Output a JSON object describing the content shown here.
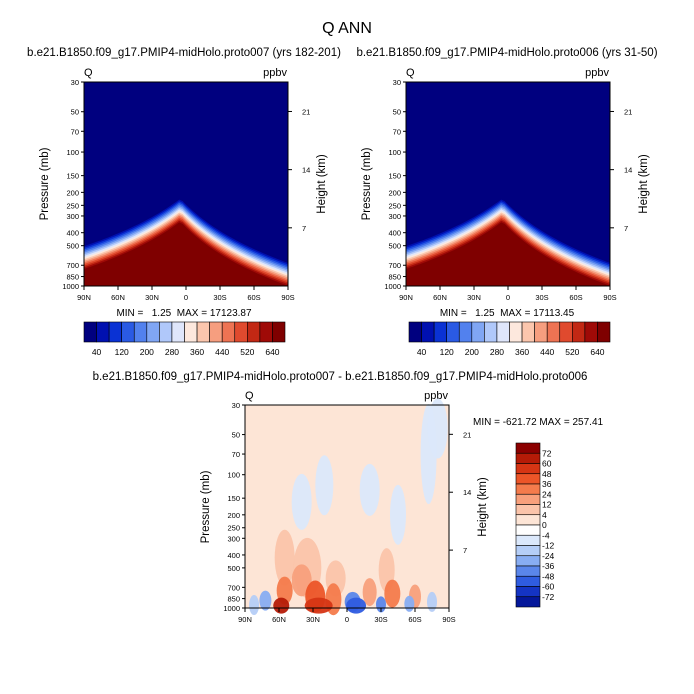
{
  "page": {
    "title": "Q ANN"
  },
  "chart_data": [
    {
      "type": "heatmap",
      "panel": "top-left",
      "title": "b.e21.B1850.f09_g17.PMIP4-midHolo.proto007 (yrs 182-201)",
      "left_label": "Q",
      "right_label": "ppbv",
      "ylabel": "Pressure (mb)",
      "ylabel_right": "Height (km)",
      "x_ticks": [
        "90N",
        "60N",
        "30N",
        "0",
        "30S",
        "60S",
        "90S"
      ],
      "y_ticks": [
        "30",
        "50",
        "70",
        "100",
        "150",
        "200",
        "250",
        "300",
        "400",
        "500",
        "700",
        "850",
        "1000"
      ],
      "y_ticks_right": [
        "21",
        "14",
        "7"
      ],
      "y_scale": "log",
      "stats": "MIN =   1.25  MAX = 17123.87",
      "colorbar": {
        "orientation": "horizontal",
        "labels": [
          "40",
          "120",
          "200",
          "280",
          "360",
          "440",
          "520",
          "640"
        ],
        "colors": [
          "#00007f",
          "#0010b0",
          "#0a32d4",
          "#2a5ae4",
          "#5281ee",
          "#80a6f4",
          "#b0c8fa",
          "#dfe6fb",
          "#fde8dd",
          "#fbc6ad",
          "#f69e7f",
          "#ee7353",
          "#e04a2e",
          "#c22814",
          "#9f0a07",
          "#7f0000"
        ]
      },
      "profile_note": "field saturates (>640) below a tropopause surface peaking near 5N at ~330 mb and falling to ~1000 mb at 90S"
    },
    {
      "type": "heatmap",
      "panel": "top-right",
      "title": "b.e21.B1850.f09_g17.PMIP4-midHolo.proto006 (yrs 31-50)",
      "left_label": "Q",
      "right_label": "ppbv",
      "ylabel": "Pressure (mb)",
      "ylabel_right": "Height (km)",
      "x_ticks": [
        "90N",
        "60N",
        "30N",
        "0",
        "30S",
        "60S",
        "90S"
      ],
      "y_ticks": [
        "30",
        "50",
        "70",
        "100",
        "150",
        "200",
        "250",
        "300",
        "400",
        "500",
        "700",
        "850",
        "1000"
      ],
      "y_ticks_right": [
        "21",
        "14",
        "7"
      ],
      "y_scale": "log",
      "stats": "MIN =   1.25  MAX = 17113.45",
      "colorbar": {
        "orientation": "horizontal",
        "labels": [
          "40",
          "120",
          "200",
          "280",
          "360",
          "440",
          "520",
          "640"
        ],
        "colors": [
          "#00007f",
          "#0010b0",
          "#0a32d4",
          "#2a5ae4",
          "#5281ee",
          "#80a6f4",
          "#b0c8fa",
          "#dfe6fb",
          "#fde8dd",
          "#fbc6ad",
          "#f69e7f",
          "#ee7353",
          "#e04a2e",
          "#c22814",
          "#9f0a07",
          "#7f0000"
        ]
      }
    },
    {
      "type": "heatmap",
      "panel": "bottom",
      "title": "b.e21.B1850.f09_g17.PMIP4-midHolo.proto007 - b.e21.B1850.f09_g17.PMIP4-midHolo.proto006",
      "left_label": "Q",
      "right_label": "ppbv",
      "ylabel": "Pressure (mb)",
      "ylabel_right": "Height (km)",
      "x_ticks": [
        "90N",
        "60N",
        "30N",
        "0",
        "30S",
        "60S",
        "90S"
      ],
      "y_ticks": [
        "30",
        "50",
        "70",
        "100",
        "150",
        "200",
        "250",
        "300",
        "400",
        "500",
        "700",
        "850",
        "1000"
      ],
      "y_ticks_right": [
        "21",
        "14",
        "7"
      ],
      "y_scale": "log",
      "stats": "MIN = -621.72  MAX = 257.41",
      "colorbar": {
        "orientation": "vertical",
        "labels": [
          "72",
          "60",
          "48",
          "36",
          "24",
          "12",
          "4",
          "0",
          "-4",
          "-12",
          "-24",
          "-36",
          "-48",
          "-60",
          "-72"
        ],
        "colors": [
          "#8b0000",
          "#b51b07",
          "#d63514",
          "#ec5528",
          "#f47b4c",
          "#f8a07c",
          "#fbc4aa",
          "#fde5d6",
          "#fefefe",
          "#dbe8fb",
          "#b5cef7",
          "#88adf2",
          "#5a86ea",
          "#2f5ce0",
          "#1434c4",
          "#04179a"
        ]
      }
    }
  ]
}
